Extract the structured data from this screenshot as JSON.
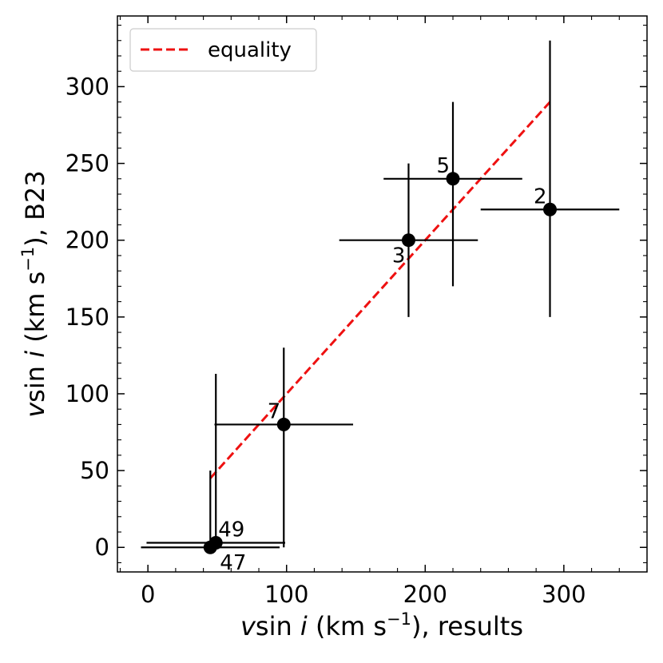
{
  "chart_data": {
    "type": "scatter",
    "title": "",
    "xlabel": {
      "v": "v",
      "sin": "sin ",
      "i": "i",
      "units_open": " (km s",
      "exp": "−1",
      "rest": "), results"
    },
    "ylabel": {
      "v": "v",
      "sin": "sin ",
      "i": "i",
      "units_open": " (km s",
      "exp": "−1",
      "rest": "), B23"
    },
    "xlim": [
      -22,
      360
    ],
    "ylim": [
      -16,
      346
    ],
    "x_ticks": [
      0,
      100,
      200,
      300
    ],
    "y_ticks": [
      0,
      50,
      100,
      150,
      200,
      250,
      300
    ],
    "x_minor_step": 20,
    "y_minor_step": 10,
    "x_tick_labels": [
      "0",
      "100",
      "200",
      "300"
    ],
    "y_tick_labels": [
      "0",
      "50",
      "100",
      "150",
      "200",
      "250",
      "300"
    ],
    "legend": {
      "placement": "top-left",
      "entries": [
        {
          "label": "equality",
          "style": "dashed",
          "color": "#ee1111"
        }
      ]
    },
    "equality_line": {
      "x": [
        45,
        290
      ],
      "y": [
        45,
        290
      ],
      "color": "#ee1111"
    },
    "points": [
      {
        "label": "2",
        "x": 290,
        "y": 220,
        "xerr": [
          50,
          50
        ],
        "yerr": [
          70,
          110
        ],
        "label_pos": "upper-left"
      },
      {
        "label": "5",
        "x": 220,
        "y": 240,
        "xerr": [
          50,
          50
        ],
        "yerr": [
          70,
          50
        ],
        "label_pos": "upper-left"
      },
      {
        "label": "3",
        "x": 188,
        "y": 200,
        "xerr": [
          50,
          50
        ],
        "yerr": [
          50,
          50
        ],
        "label_pos": "lower-left"
      },
      {
        "label": "7",
        "x": 98,
        "y": 80,
        "xerr": [
          50,
          50
        ],
        "yerr": [
          80,
          50
        ],
        "label_pos": "upper-left"
      },
      {
        "label": "49",
        "x": 49,
        "y": 3,
        "xerr": [
          50,
          50
        ],
        "yerr": [
          3,
          110
        ],
        "label_pos": "upper-right"
      },
      {
        "label": "47",
        "x": 45,
        "y": 0,
        "xerr": [
          50,
          50
        ],
        "yerr": [
          0,
          50
        ],
        "label_pos": "lower-right"
      }
    ],
    "colors": {
      "points": "#000000",
      "errorbars": "#000000",
      "axes": "#000000"
    }
  }
}
